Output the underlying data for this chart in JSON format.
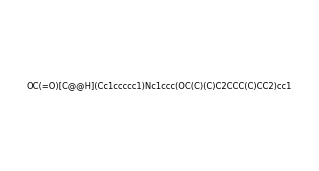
{
  "smiles": "OC(=O)[C@@H](Cc1ccccc1)Nc1ccc(OC(C)(C)C2CCC(C)CC2)cc1",
  "title": "",
  "figsize": [
    3.19,
    1.71
  ],
  "dpi": 100,
  "bg_color": "#ffffff"
}
